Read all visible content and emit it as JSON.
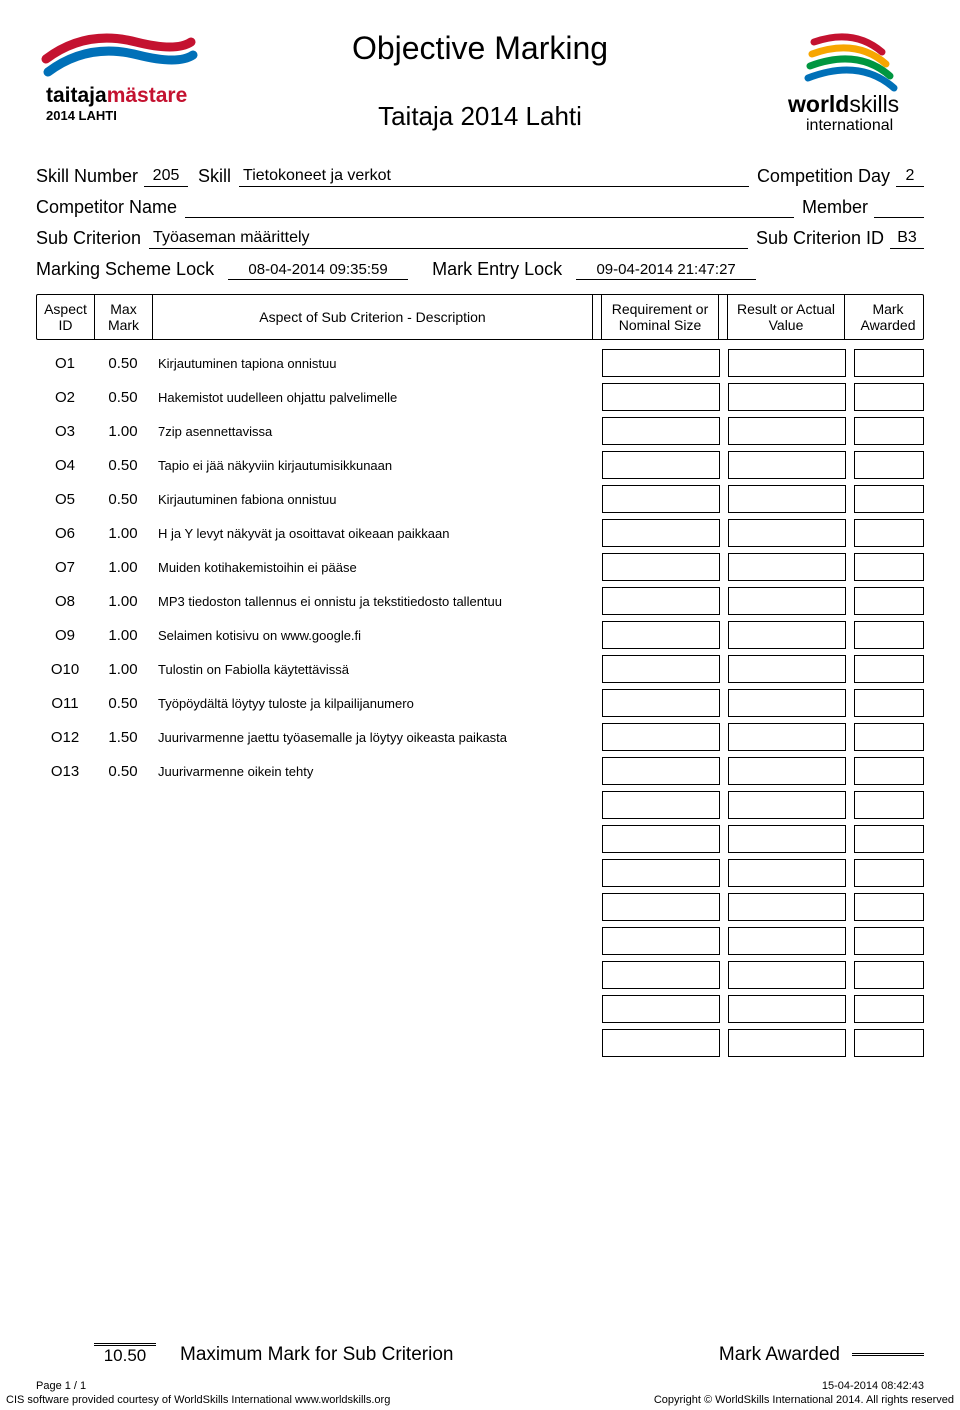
{
  "title": "Objective Marking",
  "event": "Taitaja 2014 Lahti",
  "logo_left": {
    "brand": "taitajamästare",
    "year": "2014 LAHTI",
    "accent": "#c41230",
    "accent2": "#0070b8"
  },
  "logo_right": {
    "brand": "worldskills",
    "sub": "international",
    "c1": "#c41230",
    "c2": "#0070b8",
    "c3": "#f7a600",
    "c4": "#009640"
  },
  "meta": {
    "skill_number_label": "Skill Number",
    "skill_number": "205",
    "skill_label": "Skill",
    "skill": "Tietokoneet ja verkot",
    "competition_day_label": "Competition Day",
    "competition_day": "2",
    "competitor_name_label": "Competitor Name",
    "competitor_name": "",
    "member_label": "Member",
    "member": "",
    "sub_criterion_label": "Sub Criterion",
    "sub_criterion": "Työaseman määrittely",
    "sub_criterion_id_label": "Sub Criterion ID",
    "sub_criterion_id": "B3",
    "marking_scheme_lock_label": "Marking Scheme Lock",
    "marking_scheme_lock": "08-04-2014  09:35:59",
    "mark_entry_lock_label": "Mark Entry Lock",
    "mark_entry_lock": "09-04-2014  21:47:27"
  },
  "columns": {
    "aspect_id": "Aspect ID",
    "max_mark": "Max Mark",
    "description": "Aspect of Sub Criterion - Description",
    "requirement": "Requirement or Nominal Size",
    "result": "Result or Actual Value",
    "awarded": "Mark Awarded"
  },
  "rows": [
    {
      "id": "O1",
      "max": "0.50",
      "desc": "Kirjautuminen tapiona onnistuu"
    },
    {
      "id": "O2",
      "max": "0.50",
      "desc": "Hakemistot uudelleen ohjattu palvelimelle"
    },
    {
      "id": "O3",
      "max": "1.00",
      "desc": "7zip asennettavissa"
    },
    {
      "id": "O4",
      "max": "0.50",
      "desc": "Tapio ei jää  näkyviin kirjautumisikkunaan"
    },
    {
      "id": "O5",
      "max": "0.50",
      "desc": "Kirjautuminen fabiona onnistuu"
    },
    {
      "id": "O6",
      "max": "1.00",
      "desc": "H ja Y levyt näkyvät ja osoittavat oikeaan paikkaan"
    },
    {
      "id": "O7",
      "max": "1.00",
      "desc": "Muiden kotihakemistoihin ei pääse"
    },
    {
      "id": "O8",
      "max": "1.00",
      "desc": "MP3 tiedoston tallennus ei onnistu ja tekstitiedosto tallentuu"
    },
    {
      "id": "O9",
      "max": "1.00",
      "desc": "Selaimen kotisivu on www.google.fi"
    },
    {
      "id": "O10",
      "max": "1.00",
      "desc": "Tulostin on Fabiolla käytettävissä"
    },
    {
      "id": "O11",
      "max": "0.50",
      "desc": "Työpöydältä löytyy tuloste ja kilpailijanumero"
    },
    {
      "id": "O12",
      "max": "1.50",
      "desc": "Juurivarmenne jaettu työasemalle ja löytyy oikeasta paikasta"
    },
    {
      "id": "O13",
      "max": "0.50",
      "desc": "Juurivarmenne oikein tehty"
    }
  ],
  "empty_rows": 8,
  "scoring": {
    "max_total": "10.50",
    "max_label": "Maximum Mark for Sub Criterion",
    "awarded_label": "Mark Awarded"
  },
  "footer": {
    "page": "Page 1 / 1",
    "timestamp": "15-04-2014  08:42:43",
    "left": "CIS software provided courtesy of WorldSkills International www.worldskills.org",
    "right": "Copyright © WorldSkills International 2014. All rights reserved"
  }
}
